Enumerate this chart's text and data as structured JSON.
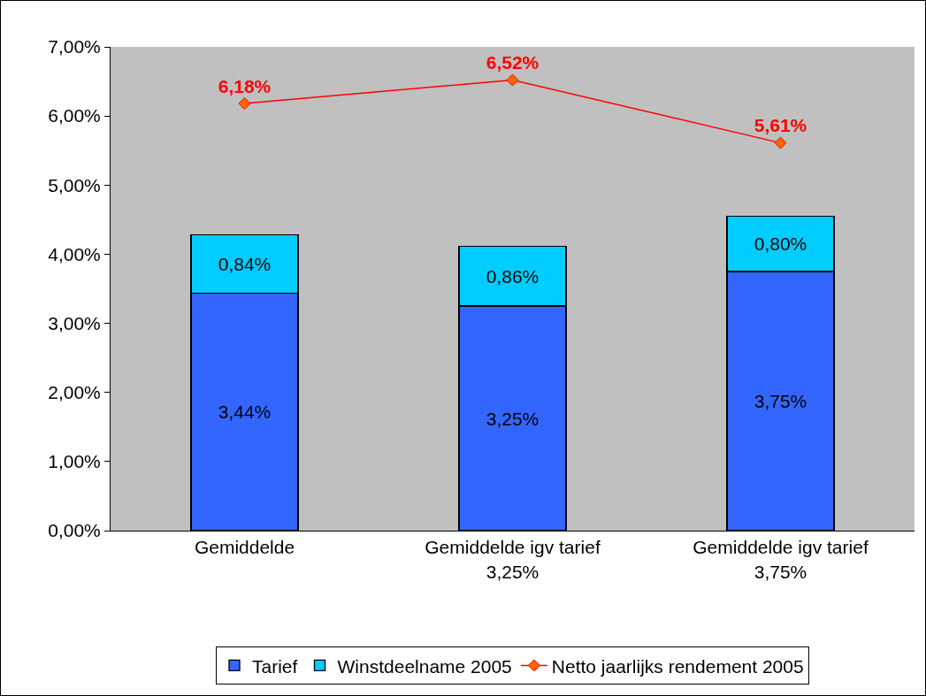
{
  "chart_data": {
    "type": "bar",
    "stacked": true,
    "categories": [
      "Gemiddelde",
      "Gemiddelde igv tarief\n3,25%",
      "Gemiddelde igv tarief\n3,75%"
    ],
    "series": [
      {
        "name": "Tarief",
        "color": "#3366ff",
        "values": [
          3.44,
          3.25,
          3.75
        ],
        "value_labels": [
          "3,44%",
          "3,25%",
          "3,75%"
        ]
      },
      {
        "name": "Winstdeelname 2005",
        "color": "#00ccff",
        "values": [
          0.84,
          0.86,
          0.8
        ],
        "value_labels": [
          "0,84%",
          "0,86%",
          "0,80%"
        ]
      },
      {
        "name": "Netto jaarlijks rendement 2005",
        "type": "line",
        "color": "#ff0000",
        "marker": "diamond",
        "values": [
          6.18,
          6.52,
          5.61
        ],
        "value_labels": [
          "6,18%",
          "6,52%",
          "5,61%"
        ]
      }
    ],
    "ylim": [
      0,
      7
    ],
    "yticks": [
      {
        "value": 0,
        "label": "0,00%"
      },
      {
        "value": 1,
        "label": "1,00%"
      },
      {
        "value": 2,
        "label": "2,00%"
      },
      {
        "value": 3,
        "label": "3,00%"
      },
      {
        "value": 4,
        "label": "4,00%"
      },
      {
        "value": 5,
        "label": "5,00%"
      },
      {
        "value": 6,
        "label": "6,00%"
      },
      {
        "value": 7,
        "label": "7,00%"
      }
    ],
    "grid": false,
    "legend": "bottom"
  }
}
